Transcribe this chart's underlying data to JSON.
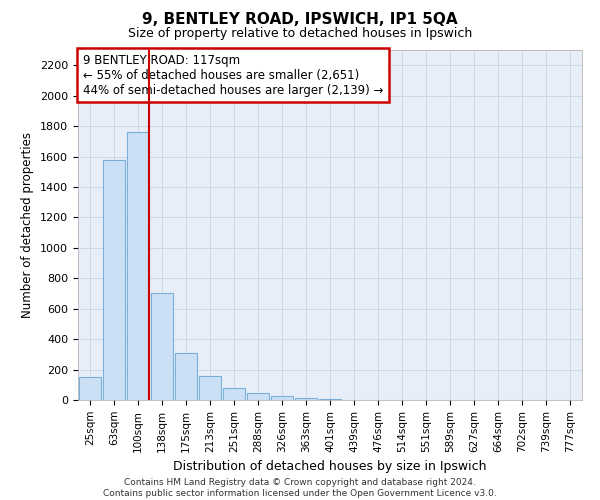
{
  "title1": "9, BENTLEY ROAD, IPSWICH, IP1 5QA",
  "title2": "Size of property relative to detached houses in Ipswich",
  "xlabel": "Distribution of detached houses by size in Ipswich",
  "ylabel": "Number of detached properties",
  "categories": [
    "25sqm",
    "63sqm",
    "100sqm",
    "138sqm",
    "175sqm",
    "213sqm",
    "251sqm",
    "288sqm",
    "326sqm",
    "363sqm",
    "401sqm",
    "439sqm",
    "476sqm",
    "514sqm",
    "551sqm",
    "589sqm",
    "627sqm",
    "664sqm",
    "702sqm",
    "739sqm",
    "777sqm"
  ],
  "values": [
    150,
    1580,
    1760,
    700,
    310,
    155,
    80,
    45,
    25,
    15,
    5,
    3,
    2,
    0,
    0,
    0,
    0,
    0,
    0,
    0,
    0
  ],
  "bar_color": "#cce0f5",
  "bar_edge_color": "#7ab0d8",
  "red_line_color": "#cc0000",
  "annotation_text_line1": "9 BENTLEY ROAD: 117sqm",
  "annotation_text_line2": "← 55% of detached houses are smaller (2,651)",
  "annotation_text_line3": "44% of semi-detached houses are larger (2,139) →",
  "annotation_box_color": "white",
  "annotation_box_edge": "#cc0000",
  "ylim": [
    0,
    2300
  ],
  "yticks": [
    0,
    200,
    400,
    600,
    800,
    1000,
    1200,
    1400,
    1600,
    1800,
    2000,
    2200
  ],
  "grid_color": "#c8d4e8",
  "background_color": "#e8eef8",
  "footer1": "Contains HM Land Registry data © Crown copyright and database right 2024.",
  "footer2": "Contains public sector information licensed under the Open Government Licence v3.0."
}
